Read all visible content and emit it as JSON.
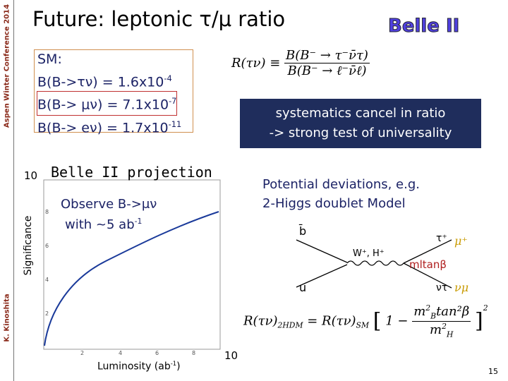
{
  "sidebar": {
    "conference": "Aspen Winter Conference 2014",
    "author": "K. Kinoshita"
  },
  "header": {
    "title": "Future: leptonic τ/μ ratio",
    "logo": "Belle II"
  },
  "sm": {
    "label": "SM:",
    "lines": [
      {
        "text": "B(B->τν) = 1.6x10",
        "exp": "-4"
      },
      {
        "text": "B(B-> μν) = 7.1x10",
        "exp": "-7"
      },
      {
        "text": "B(B-> eν) = 1.7x10",
        "exp": "-11"
      }
    ]
  },
  "ratio_formula": {
    "lhs": "R(τν) ≡",
    "numerator": "B(B⁻ → τ⁻ν̄τ)",
    "denominator": "B(B⁻ → ℓ⁻ν̄ℓ)"
  },
  "note_box": [
    "systematics cancel in ratio",
    "-> strong test of universality"
  ],
  "plot": {
    "title": "Belle II projection",
    "y_top": "10",
    "y_label": "Significance",
    "x_label": "Luminosity (ab",
    "x_label_sup": "-1",
    "x_label_end": ")",
    "x_right": "10",
    "annotation": [
      "Observe B->μν",
      "with ~5 ab"
    ],
    "annotation_sup": "-1",
    "xticks": [
      "2",
      "4",
      "6",
      "8"
    ],
    "yticks": [
      "2",
      "4",
      "6",
      "8"
    ]
  },
  "deviations": [
    "Potential deviations, e.g.",
    "2-Higgs doublet Model"
  ],
  "diagram": {
    "b": "b̄",
    "u": "u",
    "boson": "W⁺, H⁺",
    "tau": "τ⁺",
    "mu": "μ⁺",
    "nu_tau": "ντ",
    "nu_mu": "νμ",
    "coupling": "mltanβ"
  },
  "formula_2hdm": {
    "lhs": "R(τν)",
    "lhs_sub": "2HDM",
    "eq": "= R(τν)",
    "rhs_sub": "SM",
    "open": "[",
    "one_minus": "1 −",
    "num_m": "m",
    "num_sup": "2",
    "num_sub": "B",
    "num_rest": "tan²β",
    "den_m": "m",
    "den_sup": "2",
    "den_sub": "H",
    "close": "]",
    "close_sup": "2"
  },
  "page_number": "15"
}
